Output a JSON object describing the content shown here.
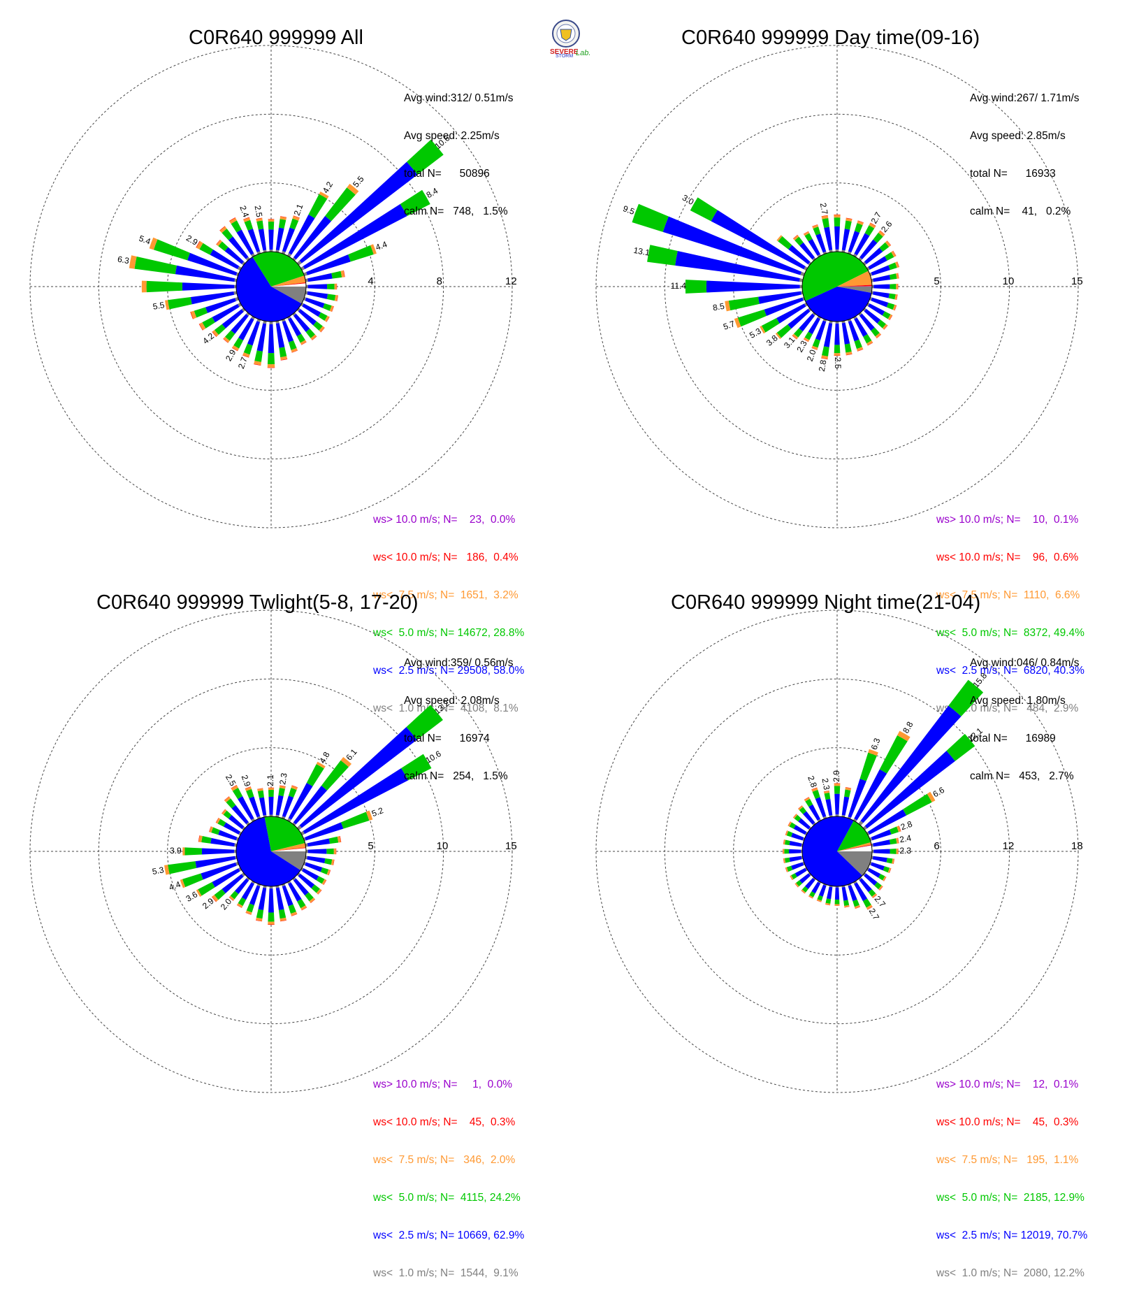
{
  "colors": {
    "calm": "#ff0000",
    "class_colors": [
      "#808080",
      "#0000ff",
      "#00c800",
      "#ff9933",
      "#ff0000",
      "#9900cc"
    ]
  },
  "logo": {
    "text_top": "SEVERE",
    "text_bottom": "STORM",
    "text_lab": "Lab."
  },
  "chart_data": [
    {
      "type": "windrose",
      "title": "C0R640 999999 All",
      "rings": [
        "4",
        "8",
        "12"
      ],
      "ring_max": 12,
      "stats": {
        "avg_wind": "Avg wind:312/ 0.51m/s",
        "avg_speed": "Avg speed: 2.25m/s",
        "total": "total N=      50896",
        "calm": "calm N=   748,   1.5%"
      },
      "legend": [
        "ws> 10.0 m/s; N=    23,  0.0%",
        "ws< 10.0 m/s; N=   186,  0.4%",
        "ws<  7.5 m/s; N=  1651,  3.2%",
        "ws<  5.0 m/s; N= 14672, 28.8%",
        "ws<  2.5 m/s; N= 29508, 58.0%",
        "ws<  1.0 m/s; N=  4108,  8.1%"
      ],
      "pie_percent": [
        8.1,
        58.0,
        28.8,
        3.2,
        0.4,
        0.0
      ],
      "directions_deg": [
        0,
        10,
        20,
        30,
        40,
        50,
        60,
        70,
        80,
        90,
        100,
        110,
        120,
        130,
        140,
        150,
        160,
        170,
        180,
        190,
        200,
        210,
        220,
        230,
        240,
        250,
        260,
        270,
        280,
        290,
        300,
        310,
        320,
        330,
        340,
        350
      ],
      "totals": [
        1.9,
        2.1,
        2.3,
        4.2,
        5.5,
        10.6,
        8.4,
        4.4,
        2.3,
        1.8,
        1.9,
        1.8,
        1.8,
        1.9,
        1.9,
        1.8,
        2.0,
        2.3,
        2.7,
        2.6,
        2.3,
        2.2,
        2.1,
        2.3,
        2.7,
        2.9,
        4.2,
        5.5,
        6.3,
        5.4,
        2.9,
        2.0,
        2.4,
        2.5,
        2.2,
        2.0
      ],
      "labels": {
        "20": "2.1",
        "30": "4.2",
        "40": "5.5",
        "50": "10.6",
        "60": "8.4",
        "70": "4.4",
        "200": "2.7",
        "210": "2.9",
        "230": "4.2",
        "260": "5.5",
        "280": "6.3",
        "290": "5.4",
        "300": "2.9",
        "340": "2.4",
        "350": "2.5"
      }
    },
    {
      "type": "windrose",
      "title": "C0R640 999999 Day time(09-16)",
      "rings": [
        "5",
        "10",
        "15"
      ],
      "ring_max": 15,
      "stats": {
        "avg_wind": "Avg wind:267/ 1.71m/s",
        "avg_speed": "Avg speed: 2.85m/s",
        "total": "total N=      16933",
        "calm": "calm N=    41,   0.2%"
      },
      "legend": [
        "ws> 10.0 m/s; N=    10,  0.1%",
        "ws< 10.0 m/s; N=    96,  0.6%",
        "ws<  7.5 m/s; N=  1110,  6.6%",
        "ws<  5.0 m/s; N=  8372, 49.4%",
        "ws<  2.5 m/s; N=  6820, 40.3%",
        "ws<  1.0 m/s; N=   484,  2.9%"
      ],
      "pie_percent": [
        2.9,
        40.3,
        49.4,
        6.6,
        0.6,
        0.1
      ],
      "directions_deg": [
        0,
        10,
        20,
        30,
        40,
        50,
        60,
        70,
        80,
        90,
        100,
        110,
        120,
        130,
        140,
        150,
        160,
        170,
        180,
        190,
        200,
        210,
        220,
        230,
        240,
        250,
        260,
        270,
        280,
        290,
        300,
        310,
        320,
        330,
        340,
        350
      ],
      "totals": [
        2.7,
        2.5,
        2.5,
        2.7,
        2.6,
        2.4,
        2.3,
        2.2,
        2.0,
        1.9,
        1.9,
        2.0,
        2.0,
        2.1,
        2.2,
        2.3,
        2.4,
        2.5,
        2.5,
        2.8,
        2.3,
        2.0,
        2.3,
        3.1,
        3.8,
        5.3,
        5.7,
        8.5,
        11.4,
        13.1,
        9.5,
        3.0,
        2.2,
        2.0,
        2.2,
        2.7
      ],
      "labels": {
        "30": "2.7",
        "40": "2.6",
        "180": "2.5",
        "190": "2.8",
        "200": "2.0",
        "210": "2.3",
        "220": "3.1",
        "230": "3.8",
        "240": "5.3",
        "250": "5.7",
        "260": "8.5",
        "270": "11.4",
        "280": "13.1",
        "290": "9.5",
        "300": "3.0",
        "350": "2.7"
      }
    },
    {
      "type": "windrose",
      "title": "C0R640 999999 Twlight(5-8, 17-20)",
      "rings": [
        "5",
        "10",
        "15"
      ],
      "ring_max": 15,
      "stats": {
        "avg_wind": "Avg wind:359/ 0.56m/s",
        "avg_speed": "Avg speed: 2.08m/s",
        "total": "total N=      16974",
        "calm": "calm N=   254,   1.5%"
      },
      "legend": [
        "ws> 10.0 m/s; N=     1,  0.0%",
        "ws< 10.0 m/s; N=    45,  0.3%",
        "ws<  7.5 m/s; N=   346,  2.0%",
        "ws<  5.0 m/s; N=  4115, 24.2%",
        "ws<  2.5 m/s; N= 10669, 62.9%",
        "ws<  1.0 m/s; N=  1544,  9.1%"
      ],
      "pie_percent": [
        9.1,
        62.9,
        24.2,
        2.0,
        0.3,
        0.0
      ],
      "directions_deg": [
        0,
        10,
        20,
        30,
        40,
        50,
        60,
        70,
        80,
        90,
        100,
        110,
        120,
        130,
        140,
        150,
        160,
        170,
        180,
        190,
        200,
        210,
        220,
        230,
        240,
        250,
        260,
        270,
        280,
        290,
        300,
        310,
        320,
        330,
        340,
        350
      ],
      "totals": [
        2.1,
        2.3,
        2.5,
        4.8,
        6.1,
        13.2,
        10.6,
        5.2,
        2.6,
        2.2,
        2.1,
        2.0,
        2.0,
        2.1,
        2.2,
        2.3,
        2.4,
        2.6,
        2.8,
        2.6,
        2.3,
        2.1,
        2.0,
        2.9,
        3.6,
        4.4,
        5.3,
        3.9,
        2.8,
        2.2,
        2.0,
        2.0,
        2.5,
        2.9,
        2.4,
        2.1
      ],
      "labels": {
        "0": "2.1",
        "10": "2.3",
        "30": "4.8",
        "40": "6.1",
        "50": "13.2",
        "60": "10.6",
        "70": "5.2",
        "220": "2.0",
        "230": "2.9",
        "240": "3.6",
        "250": "4.4",
        "260": "5.3",
        "270": "3.9",
        "330": "2.5",
        "340": "2.9"
      }
    },
    {
      "type": "windrose",
      "title": "C0R640 999999 Night time(21-04)",
      "rings": [
        "6",
        "12",
        "18"
      ],
      "ring_max": 18,
      "stats": {
        "avg_wind": "Avg wind:046/ 0.84m/s",
        "avg_speed": "Avg speed: 1.80m/s",
        "total": "total N=      16989",
        "calm": "calm N=   453,   2.7%"
      },
      "legend": [
        "ws> 10.0 m/s; N=    12,  0.1%",
        "ws< 10.0 m/s; N=    45,  0.3%",
        "ws<  7.5 m/s; N=   195,  1.1%",
        "ws<  5.0 m/s; N=  2185, 12.9%",
        "ws<  2.5 m/s; N= 12019, 70.7%",
        "ws<  1.0 m/s; N=  2080, 12.2%"
      ],
      "pie_percent": [
        12.2,
        70.7,
        12.9,
        1.1,
        0.3,
        0.1
      ],
      "directions_deg": [
        0,
        10,
        20,
        30,
        40,
        50,
        60,
        70,
        80,
        90,
        100,
        110,
        120,
        130,
        140,
        150,
        160,
        170,
        180,
        190,
        200,
        210,
        220,
        230,
        240,
        250,
        260,
        270,
        280,
        290,
        300,
        310,
        320,
        330,
        340,
        350
      ],
      "totals": [
        2.9,
        2.6,
        6.3,
        8.8,
        15.8,
        12.1,
        6.6,
        2.8,
        2.4,
        2.3,
        2.0,
        1.9,
        1.8,
        2.0,
        2.1,
        2.7,
        2.2,
        1.9,
        1.7,
        1.7,
        1.6,
        1.6,
        1.6,
        1.6,
        1.6,
        1.7,
        1.7,
        1.7,
        1.7,
        1.7,
        1.8,
        1.8,
        2.0,
        2.3,
        2.8,
        2.3
      ],
      "labels": {
        "0": "2.9",
        "20": "6.3",
        "30": "8.8",
        "40": "15.8",
        "50": "12.1",
        "60": "6.6",
        "70": "2.8",
        "80": "2.4",
        "90": "2.3",
        "140": "2.7",
        "150": "2.7",
        "340": "2.8",
        "350": "2.3"
      }
    }
  ]
}
